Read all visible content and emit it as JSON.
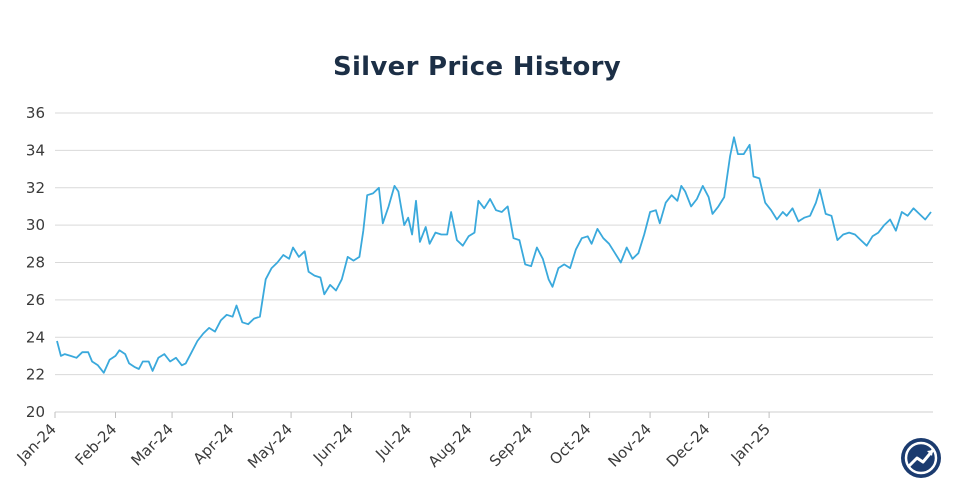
{
  "chart_data": {
    "type": "line",
    "title": "Silver Price History",
    "xlabel": "",
    "ylabel": "",
    "ylim": [
      20,
      36
    ],
    "yticks": [
      20,
      22,
      24,
      26,
      28,
      30,
      32,
      34,
      36
    ],
    "xticks": [
      "Jan-24",
      "Feb-24",
      "Mar-24",
      "Apr-24",
      "May-24",
      "Jun-24",
      "Jul-24",
      "Aug-24",
      "Sep-24",
      "Oct-24",
      "Nov-24",
      "Dec-24",
      "Jan-25"
    ],
    "grid": true,
    "legend": "none",
    "line_color": "#3aa9dc",
    "series": [
      {
        "values": [
          [
            "2024-01-02",
            23.8
          ],
          [
            "2024-01-04",
            23.0
          ],
          [
            "2024-01-06",
            23.1
          ],
          [
            "2024-01-09",
            23.0
          ],
          [
            "2024-01-12",
            22.9
          ],
          [
            "2024-01-15",
            23.2
          ],
          [
            "2024-01-18",
            23.2
          ],
          [
            "2024-01-20",
            22.7
          ],
          [
            "2024-01-23",
            22.5
          ],
          [
            "2024-01-26",
            22.1
          ],
          [
            "2024-01-29",
            22.8
          ],
          [
            "2024-02-01",
            23.0
          ],
          [
            "2024-02-03",
            23.3
          ],
          [
            "2024-02-06",
            23.1
          ],
          [
            "2024-02-08",
            22.6
          ],
          [
            "2024-02-11",
            22.4
          ],
          [
            "2024-02-13",
            22.3
          ],
          [
            "2024-02-15",
            22.7
          ],
          [
            "2024-02-18",
            22.7
          ],
          [
            "2024-02-20",
            22.2
          ],
          [
            "2024-02-23",
            22.9
          ],
          [
            "2024-02-26",
            23.1
          ],
          [
            "2024-02-29",
            22.7
          ],
          [
            "2024-03-03",
            22.9
          ],
          [
            "2024-03-06",
            22.5
          ],
          [
            "2024-03-08",
            22.6
          ],
          [
            "2024-03-11",
            23.2
          ],
          [
            "2024-03-14",
            23.8
          ],
          [
            "2024-03-17",
            24.2
          ],
          [
            "2024-03-20",
            24.5
          ],
          [
            "2024-03-23",
            24.3
          ],
          [
            "2024-03-26",
            24.9
          ],
          [
            "2024-03-29",
            25.2
          ],
          [
            "2024-04-01",
            25.1
          ],
          [
            "2024-04-03",
            25.7
          ],
          [
            "2024-04-06",
            24.8
          ],
          [
            "2024-04-09",
            24.7
          ],
          [
            "2024-04-12",
            25.0
          ],
          [
            "2024-04-15",
            25.1
          ],
          [
            "2024-04-18",
            27.1
          ],
          [
            "2024-04-21",
            27.7
          ],
          [
            "2024-04-24",
            28.0
          ],
          [
            "2024-04-27",
            28.4
          ],
          [
            "2024-04-30",
            28.2
          ],
          [
            "2024-05-02",
            28.8
          ],
          [
            "2024-05-05",
            28.3
          ],
          [
            "2024-05-08",
            28.6
          ],
          [
            "2024-05-10",
            27.5
          ],
          [
            "2024-05-13",
            27.3
          ],
          [
            "2024-05-16",
            27.2
          ],
          [
            "2024-05-18",
            26.3
          ],
          [
            "2024-05-21",
            26.8
          ],
          [
            "2024-05-24",
            26.5
          ],
          [
            "2024-05-27",
            27.1
          ],
          [
            "2024-05-30",
            28.3
          ],
          [
            "2024-06-02",
            28.1
          ],
          [
            "2024-06-05",
            28.3
          ],
          [
            "2024-06-07",
            29.7
          ],
          [
            "2024-06-09",
            31.6
          ],
          [
            "2024-06-12",
            31.7
          ],
          [
            "2024-06-15",
            32.0
          ],
          [
            "2024-06-17",
            30.1
          ],
          [
            "2024-06-20",
            31.0
          ],
          [
            "2024-06-23",
            32.1
          ],
          [
            "2024-06-25",
            31.8
          ],
          [
            "2024-06-28",
            30.0
          ],
          [
            "2024-06-30",
            30.4
          ],
          [
            "2024-07-02",
            29.5
          ],
          [
            "2024-07-04",
            31.3
          ],
          [
            "2024-07-06",
            29.1
          ],
          [
            "2024-07-09",
            29.9
          ],
          [
            "2024-07-11",
            29.0
          ],
          [
            "2024-07-14",
            29.6
          ],
          [
            "2024-07-17",
            29.5
          ],
          [
            "2024-07-20",
            29.5
          ],
          [
            "2024-07-22",
            30.7
          ],
          [
            "2024-07-25",
            29.2
          ],
          [
            "2024-07-28",
            28.9
          ],
          [
            "2024-07-31",
            29.4
          ],
          [
            "2024-08-03",
            29.6
          ],
          [
            "2024-08-05",
            31.3
          ],
          [
            "2024-08-08",
            30.9
          ],
          [
            "2024-08-11",
            31.4
          ],
          [
            "2024-08-14",
            30.8
          ],
          [
            "2024-08-17",
            30.7
          ],
          [
            "2024-08-20",
            31.0
          ],
          [
            "2024-08-23",
            29.3
          ],
          [
            "2024-08-26",
            29.2
          ],
          [
            "2024-08-29",
            27.9
          ],
          [
            "2024-09-01",
            27.8
          ],
          [
            "2024-09-04",
            28.8
          ],
          [
            "2024-09-07",
            28.2
          ],
          [
            "2024-09-10",
            27.1
          ],
          [
            "2024-09-12",
            26.7
          ],
          [
            "2024-09-15",
            27.7
          ],
          [
            "2024-09-18",
            27.9
          ],
          [
            "2024-09-21",
            27.7
          ],
          [
            "2024-09-24",
            28.7
          ],
          [
            "2024-09-27",
            29.3
          ],
          [
            "2024-09-30",
            29.4
          ],
          [
            "2024-10-02",
            29.0
          ],
          [
            "2024-10-05",
            29.8
          ],
          [
            "2024-10-08",
            29.3
          ],
          [
            "2024-10-11",
            29.0
          ],
          [
            "2024-10-14",
            28.5
          ],
          [
            "2024-10-17",
            28.0
          ],
          [
            "2024-10-20",
            28.8
          ],
          [
            "2024-10-23",
            28.2
          ],
          [
            "2024-10-26",
            28.5
          ],
          [
            "2024-10-29",
            29.5
          ],
          [
            "2024-11-01",
            30.7
          ],
          [
            "2024-11-04",
            30.8
          ],
          [
            "2024-11-06",
            30.1
          ],
          [
            "2024-11-09",
            31.2
          ],
          [
            "2024-11-12",
            31.6
          ],
          [
            "2024-11-15",
            31.3
          ],
          [
            "2024-11-17",
            32.1
          ],
          [
            "2024-11-19",
            31.8
          ],
          [
            "2024-11-22",
            31.0
          ],
          [
            "2024-11-25",
            31.4
          ],
          [
            "2024-11-28",
            32.1
          ],
          [
            "2024-12-01",
            31.5
          ],
          [
            "2024-12-03",
            30.6
          ],
          [
            "2024-12-06",
            31.0
          ],
          [
            "2024-12-09",
            31.5
          ],
          [
            "2024-12-12",
            33.7
          ],
          [
            "2024-12-14",
            34.7
          ],
          [
            "2024-12-16",
            33.8
          ],
          [
            "2024-12-19",
            33.8
          ],
          [
            "2024-12-22",
            34.3
          ],
          [
            "2024-12-24",
            32.6
          ],
          [
            "2024-12-27",
            32.5
          ],
          [
            "2024-12-30",
            31.2
          ],
          [
            "2025-01-02",
            30.8
          ],
          [
            "2025-01-05",
            30.3
          ],
          [
            "2025-01-08",
            30.7
          ],
          [
            "2025-01-10",
            30.5
          ],
          [
            "2025-01-13",
            30.9
          ],
          [
            "2025-01-16",
            30.2
          ],
          [
            "2025-01-19",
            30.4
          ],
          [
            "2025-01-22",
            30.5
          ],
          [
            "2025-01-25",
            31.2
          ],
          [
            "2025-01-27",
            31.9
          ],
          [
            "2025-01-30",
            30.6
          ],
          [
            "2025-02-02",
            30.5
          ],
          [
            "2025-02-05",
            29.2
          ],
          [
            "2025-02-08",
            29.5
          ],
          [
            "2025-02-11",
            29.6
          ],
          [
            "2025-02-14",
            29.5
          ],
          [
            "2025-02-17",
            29.2
          ],
          [
            "2025-02-20",
            28.9
          ],
          [
            "2025-02-23",
            29.4
          ],
          [
            "2025-02-26",
            29.6
          ],
          [
            "2025-03-01",
            30.0
          ],
          [
            "2025-03-04",
            30.3
          ],
          [
            "2025-03-07",
            29.7
          ],
          [
            "2025-03-10",
            30.7
          ],
          [
            "2025-03-13",
            30.5
          ],
          [
            "2025-03-16",
            30.9
          ],
          [
            "2025-03-19",
            30.6
          ],
          [
            "2025-03-22",
            30.3
          ],
          [
            "2025-03-25",
            30.7
          ]
        ]
      }
    ]
  },
  "logo": {
    "icon": "trend-logo-icon",
    "bg_color": "#1b3b6f",
    "accent_color": "#ffffff"
  }
}
